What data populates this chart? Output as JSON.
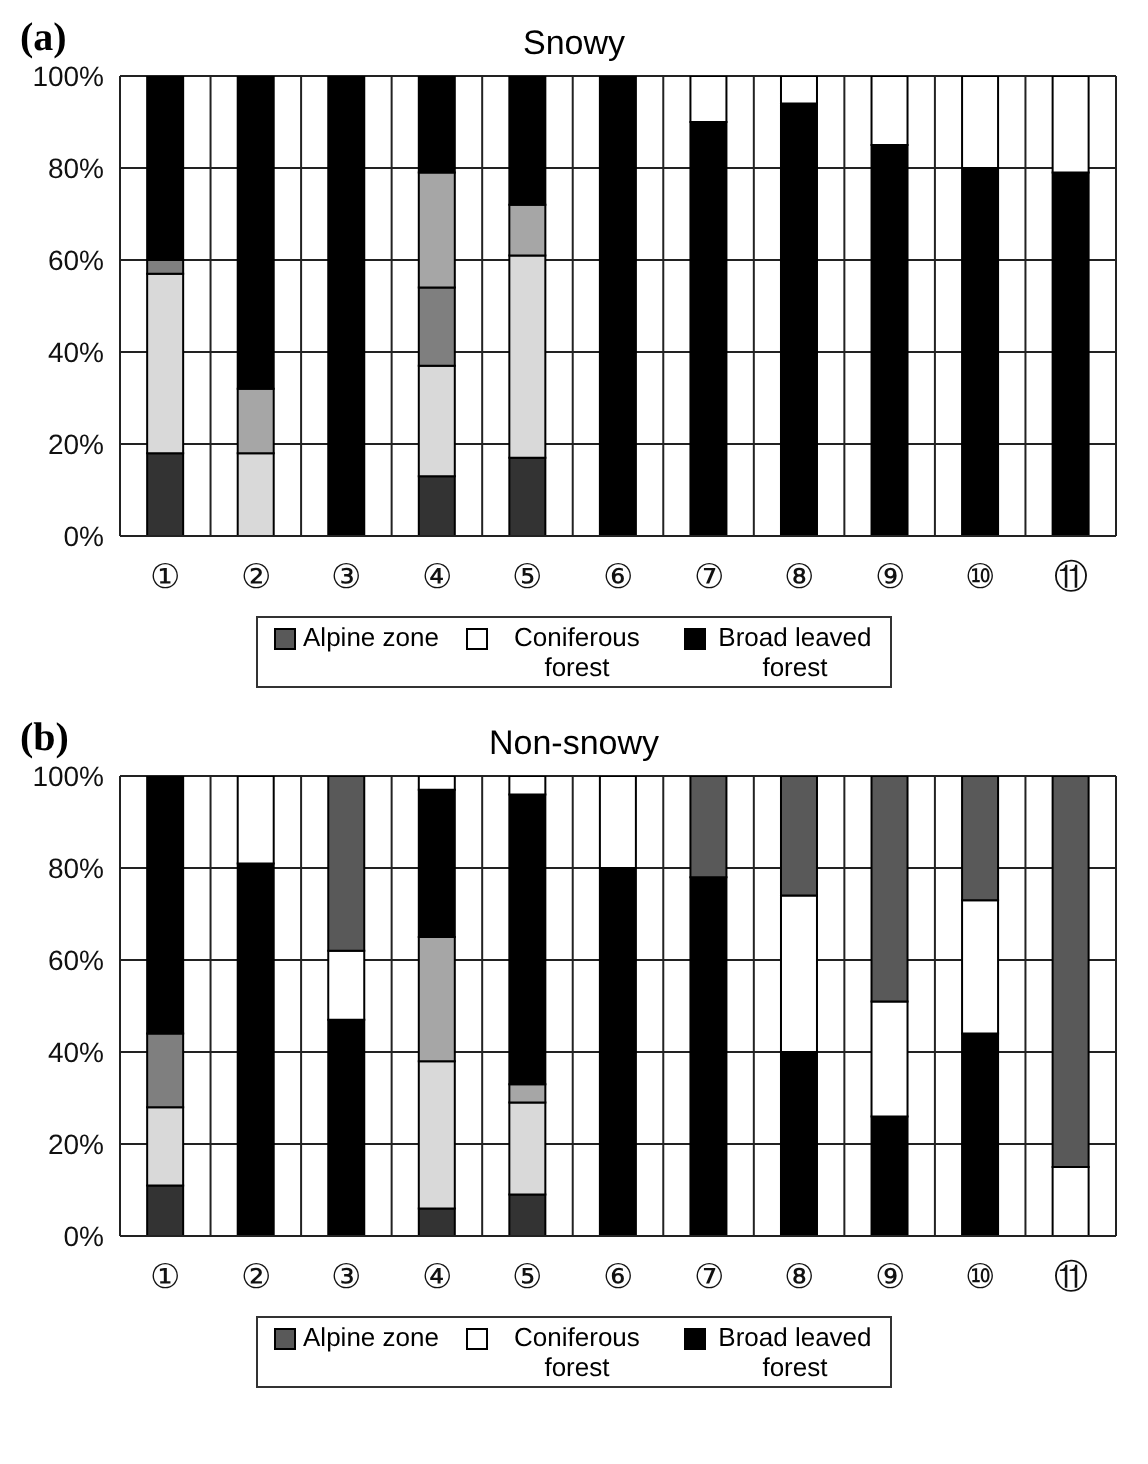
{
  "chart_data": [
    {
      "type": "bar",
      "title": "Snowy",
      "annotations": [
        "(a)"
      ],
      "stacked": true,
      "grid": true,
      "legend": "bottom",
      "categories": [
        "①",
        "②",
        "③",
        "④",
        "⑤",
        "⑥",
        "⑦",
        "⑧",
        "⑨",
        "⑩",
        "⑪"
      ],
      "ylim": [
        0,
        100
      ],
      "yticks": [
        {
          "value": 0,
          "label": "0%"
        },
        {
          "value": 20,
          "label": "20%"
        },
        {
          "value": 40,
          "label": "40%"
        },
        {
          "value": 60,
          "label": "60%"
        },
        {
          "value": 80,
          "label": "80%"
        },
        {
          "value": 100,
          "label": "100%"
        }
      ],
      "series": [
        {
          "color": "#333333",
          "values": [
            18,
            0,
            0,
            13,
            17,
            0,
            0,
            0,
            0,
            0,
            0
          ]
        },
        {
          "color": "#d9d9d9",
          "values": [
            39,
            18,
            0,
            24,
            44,
            0,
            0,
            0,
            0,
            0,
            0
          ]
        },
        {
          "color": "#7f7f7f",
          "values": [
            3,
            0,
            0,
            17,
            0,
            0,
            0,
            0,
            0,
            0,
            0
          ]
        },
        {
          "color": "#a6a6a6",
          "values": [
            0,
            14,
            0,
            25,
            11,
            0,
            0,
            0,
            0,
            0,
            0
          ]
        },
        {
          "name": "Broad leaved forest",
          "color": "#000000",
          "values": [
            40,
            68,
            100,
            21,
            28,
            100,
            90,
            94,
            85,
            80,
            79
          ]
        },
        {
          "name": "Coniferous forest",
          "color": "#ffffff",
          "values": [
            0,
            0,
            0,
            0,
            0,
            0,
            10,
            6,
            15,
            20,
            21
          ]
        },
        {
          "name": "Alpine zone",
          "color": "#595959",
          "values": [
            0,
            0,
            0,
            0,
            0,
            0,
            0,
            0,
            0,
            0,
            0
          ]
        }
      ]
    },
    {
      "type": "bar",
      "title": "Non-snowy",
      "annotations": [
        "(b)"
      ],
      "stacked": true,
      "grid": true,
      "legend": "bottom",
      "categories": [
        "①",
        "②",
        "③",
        "④",
        "⑤",
        "⑥",
        "⑦",
        "⑧",
        "⑨",
        "⑩",
        "⑪"
      ],
      "ylim": [
        0,
        100
      ],
      "yticks": [
        {
          "value": 0,
          "label": "0%"
        },
        {
          "value": 20,
          "label": "20%"
        },
        {
          "value": 40,
          "label": "40%"
        },
        {
          "value": 60,
          "label": "60%"
        },
        {
          "value": 80,
          "label": "80%"
        },
        {
          "value": 100,
          "label": "100%"
        }
      ],
      "series": [
        {
          "color": "#333333",
          "values": [
            11,
            0,
            0,
            6,
            9,
            0,
            0,
            0,
            0,
            0,
            0
          ]
        },
        {
          "color": "#d9d9d9",
          "values": [
            17,
            0,
            0,
            32,
            20,
            0,
            0,
            0,
            0,
            0,
            0
          ]
        },
        {
          "color": "#7f7f7f",
          "values": [
            16,
            0,
            0,
            0,
            0,
            0,
            0,
            0,
            0,
            0,
            0
          ]
        },
        {
          "color": "#a6a6a6",
          "values": [
            0,
            0,
            0,
            27,
            4,
            0,
            0,
            0,
            0,
            0,
            0
          ]
        },
        {
          "name": "Broad leaved forest",
          "color": "#000000",
          "values": [
            56,
            81,
            47,
            32,
            63,
            80,
            78,
            40,
            26,
            44,
            0
          ]
        },
        {
          "name": "Coniferous forest",
          "color": "#ffffff",
          "values": [
            0,
            19,
            15,
            3,
            4,
            20,
            0,
            34,
            25,
            29,
            15
          ]
        },
        {
          "name": "Alpine zone",
          "color": "#595959",
          "values": [
            0,
            0,
            38,
            0,
            0,
            0,
            22,
            26,
            49,
            27,
            85
          ]
        }
      ]
    }
  ]
}
